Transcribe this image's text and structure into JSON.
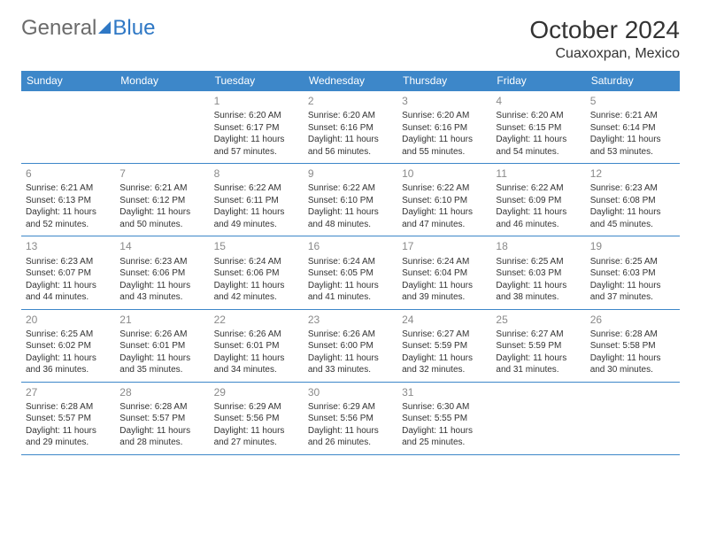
{
  "brand": {
    "part1": "General",
    "part2": "Blue"
  },
  "title": "October 2024",
  "location": "Cuaxoxpan, Mexico",
  "colors": {
    "header_bg": "#3d87c9",
    "header_text": "#ffffff",
    "border": "#3d87c9",
    "daynum": "#8a8a8a",
    "body_text": "#333333",
    "logo_gray": "#6b6b6b",
    "logo_blue": "#2f78c5",
    "background": "#ffffff"
  },
  "typography": {
    "month_title_size": 28,
    "location_size": 16,
    "weekday_size": 12,
    "daynum_size": 12,
    "cell_size": 10,
    "font_family": "Arial"
  },
  "weekdays": [
    "Sunday",
    "Monday",
    "Tuesday",
    "Wednesday",
    "Thursday",
    "Friday",
    "Saturday"
  ],
  "weeks": [
    [
      null,
      null,
      {
        "d": "1",
        "sr": "Sunrise: 6:20 AM",
        "ss": "Sunset: 6:17 PM",
        "dl1": "Daylight: 11 hours",
        "dl2": "and 57 minutes."
      },
      {
        "d": "2",
        "sr": "Sunrise: 6:20 AM",
        "ss": "Sunset: 6:16 PM",
        "dl1": "Daylight: 11 hours",
        "dl2": "and 56 minutes."
      },
      {
        "d": "3",
        "sr": "Sunrise: 6:20 AM",
        "ss": "Sunset: 6:16 PM",
        "dl1": "Daylight: 11 hours",
        "dl2": "and 55 minutes."
      },
      {
        "d": "4",
        "sr": "Sunrise: 6:20 AM",
        "ss": "Sunset: 6:15 PM",
        "dl1": "Daylight: 11 hours",
        "dl2": "and 54 minutes."
      },
      {
        "d": "5",
        "sr": "Sunrise: 6:21 AM",
        "ss": "Sunset: 6:14 PM",
        "dl1": "Daylight: 11 hours",
        "dl2": "and 53 minutes."
      }
    ],
    [
      {
        "d": "6",
        "sr": "Sunrise: 6:21 AM",
        "ss": "Sunset: 6:13 PM",
        "dl1": "Daylight: 11 hours",
        "dl2": "and 52 minutes."
      },
      {
        "d": "7",
        "sr": "Sunrise: 6:21 AM",
        "ss": "Sunset: 6:12 PM",
        "dl1": "Daylight: 11 hours",
        "dl2": "and 50 minutes."
      },
      {
        "d": "8",
        "sr": "Sunrise: 6:22 AM",
        "ss": "Sunset: 6:11 PM",
        "dl1": "Daylight: 11 hours",
        "dl2": "and 49 minutes."
      },
      {
        "d": "9",
        "sr": "Sunrise: 6:22 AM",
        "ss": "Sunset: 6:10 PM",
        "dl1": "Daylight: 11 hours",
        "dl2": "and 48 minutes."
      },
      {
        "d": "10",
        "sr": "Sunrise: 6:22 AM",
        "ss": "Sunset: 6:10 PM",
        "dl1": "Daylight: 11 hours",
        "dl2": "and 47 minutes."
      },
      {
        "d": "11",
        "sr": "Sunrise: 6:22 AM",
        "ss": "Sunset: 6:09 PM",
        "dl1": "Daylight: 11 hours",
        "dl2": "and 46 minutes."
      },
      {
        "d": "12",
        "sr": "Sunrise: 6:23 AM",
        "ss": "Sunset: 6:08 PM",
        "dl1": "Daylight: 11 hours",
        "dl2": "and 45 minutes."
      }
    ],
    [
      {
        "d": "13",
        "sr": "Sunrise: 6:23 AM",
        "ss": "Sunset: 6:07 PM",
        "dl1": "Daylight: 11 hours",
        "dl2": "and 44 minutes."
      },
      {
        "d": "14",
        "sr": "Sunrise: 6:23 AM",
        "ss": "Sunset: 6:06 PM",
        "dl1": "Daylight: 11 hours",
        "dl2": "and 43 minutes."
      },
      {
        "d": "15",
        "sr": "Sunrise: 6:24 AM",
        "ss": "Sunset: 6:06 PM",
        "dl1": "Daylight: 11 hours",
        "dl2": "and 42 minutes."
      },
      {
        "d": "16",
        "sr": "Sunrise: 6:24 AM",
        "ss": "Sunset: 6:05 PM",
        "dl1": "Daylight: 11 hours",
        "dl2": "and 41 minutes."
      },
      {
        "d": "17",
        "sr": "Sunrise: 6:24 AM",
        "ss": "Sunset: 6:04 PM",
        "dl1": "Daylight: 11 hours",
        "dl2": "and 39 minutes."
      },
      {
        "d": "18",
        "sr": "Sunrise: 6:25 AM",
        "ss": "Sunset: 6:03 PM",
        "dl1": "Daylight: 11 hours",
        "dl2": "and 38 minutes."
      },
      {
        "d": "19",
        "sr": "Sunrise: 6:25 AM",
        "ss": "Sunset: 6:03 PM",
        "dl1": "Daylight: 11 hours",
        "dl2": "and 37 minutes."
      }
    ],
    [
      {
        "d": "20",
        "sr": "Sunrise: 6:25 AM",
        "ss": "Sunset: 6:02 PM",
        "dl1": "Daylight: 11 hours",
        "dl2": "and 36 minutes."
      },
      {
        "d": "21",
        "sr": "Sunrise: 6:26 AM",
        "ss": "Sunset: 6:01 PM",
        "dl1": "Daylight: 11 hours",
        "dl2": "and 35 minutes."
      },
      {
        "d": "22",
        "sr": "Sunrise: 6:26 AM",
        "ss": "Sunset: 6:01 PM",
        "dl1": "Daylight: 11 hours",
        "dl2": "and 34 minutes."
      },
      {
        "d": "23",
        "sr": "Sunrise: 6:26 AM",
        "ss": "Sunset: 6:00 PM",
        "dl1": "Daylight: 11 hours",
        "dl2": "and 33 minutes."
      },
      {
        "d": "24",
        "sr": "Sunrise: 6:27 AM",
        "ss": "Sunset: 5:59 PM",
        "dl1": "Daylight: 11 hours",
        "dl2": "and 32 minutes."
      },
      {
        "d": "25",
        "sr": "Sunrise: 6:27 AM",
        "ss": "Sunset: 5:59 PM",
        "dl1": "Daylight: 11 hours",
        "dl2": "and 31 minutes."
      },
      {
        "d": "26",
        "sr": "Sunrise: 6:28 AM",
        "ss": "Sunset: 5:58 PM",
        "dl1": "Daylight: 11 hours",
        "dl2": "and 30 minutes."
      }
    ],
    [
      {
        "d": "27",
        "sr": "Sunrise: 6:28 AM",
        "ss": "Sunset: 5:57 PM",
        "dl1": "Daylight: 11 hours",
        "dl2": "and 29 minutes."
      },
      {
        "d": "28",
        "sr": "Sunrise: 6:28 AM",
        "ss": "Sunset: 5:57 PM",
        "dl1": "Daylight: 11 hours",
        "dl2": "and 28 minutes."
      },
      {
        "d": "29",
        "sr": "Sunrise: 6:29 AM",
        "ss": "Sunset: 5:56 PM",
        "dl1": "Daylight: 11 hours",
        "dl2": "and 27 minutes."
      },
      {
        "d": "30",
        "sr": "Sunrise: 6:29 AM",
        "ss": "Sunset: 5:56 PM",
        "dl1": "Daylight: 11 hours",
        "dl2": "and 26 minutes."
      },
      {
        "d": "31",
        "sr": "Sunrise: 6:30 AM",
        "ss": "Sunset: 5:55 PM",
        "dl1": "Daylight: 11 hours",
        "dl2": "and 25 minutes."
      },
      null,
      null
    ]
  ]
}
